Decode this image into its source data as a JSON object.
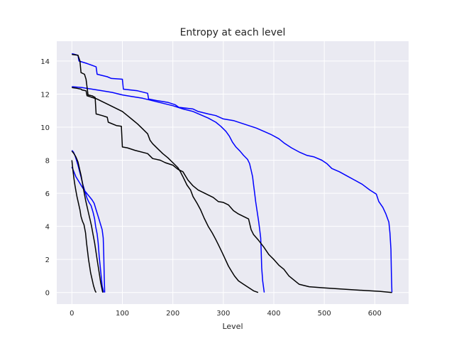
{
  "chart_data": {
    "type": "line",
    "title": "Entropy at each level",
    "xlabel": "Level",
    "ylabel": "",
    "xlim": [
      -30,
      667
    ],
    "ylim": [
      -0.7,
      15.2
    ],
    "xticks": [
      0,
      100,
      200,
      300,
      400,
      500,
      600
    ],
    "yticks": [
      0,
      2,
      4,
      6,
      8,
      10,
      12,
      14
    ],
    "grid": true,
    "style": {
      "background": "#eaeaf2",
      "grid_color": "#ffffff",
      "colors": {
        "blue": "#0000ff",
        "black": "#000000"
      }
    },
    "series": [
      {
        "color": "blue",
        "points": [
          [
            0,
            14.45
          ],
          [
            6,
            14.4
          ],
          [
            12,
            14.35
          ],
          [
            14,
            14.0
          ],
          [
            30,
            13.85
          ],
          [
            48,
            13.65
          ],
          [
            50,
            13.2
          ],
          [
            70,
            13.05
          ],
          [
            78,
            12.95
          ],
          [
            100,
            12.9
          ],
          [
            102,
            12.3
          ],
          [
            130,
            12.2
          ],
          [
            150,
            12.05
          ],
          [
            152,
            11.7
          ],
          [
            170,
            11.6
          ],
          [
            190,
            11.5
          ],
          [
            205,
            11.35
          ],
          [
            212,
            11.2
          ],
          [
            240,
            11.1
          ],
          [
            250,
            10.95
          ],
          [
            270,
            10.8
          ],
          [
            285,
            10.7
          ],
          [
            300,
            10.5
          ],
          [
            320,
            10.4
          ],
          [
            335,
            10.25
          ],
          [
            350,
            10.1
          ],
          [
            365,
            9.95
          ],
          [
            380,
            9.75
          ],
          [
            395,
            9.55
          ],
          [
            410,
            9.3
          ],
          [
            420,
            9.05
          ],
          [
            435,
            8.75
          ],
          [
            450,
            8.5
          ],
          [
            465,
            8.3
          ],
          [
            480,
            8.2
          ],
          [
            495,
            8.0
          ],
          [
            505,
            7.8
          ],
          [
            515,
            7.5
          ],
          [
            530,
            7.3
          ],
          [
            545,
            7.05
          ],
          [
            560,
            6.8
          ],
          [
            575,
            6.55
          ],
          [
            590,
            6.2
          ],
          [
            603,
            5.95
          ],
          [
            608,
            5.5
          ],
          [
            616,
            5.15
          ],
          [
            622,
            4.75
          ],
          [
            628,
            4.25
          ],
          [
            630,
            3.6
          ],
          [
            632,
            2.6
          ],
          [
            633,
            1.0
          ],
          [
            634,
            0.0
          ]
        ]
      },
      {
        "color": "blue",
        "points": [
          [
            0,
            12.45
          ],
          [
            20,
            12.4
          ],
          [
            40,
            12.3
          ],
          [
            60,
            12.2
          ],
          [
            80,
            12.1
          ],
          [
            100,
            11.95
          ],
          [
            120,
            11.85
          ],
          [
            140,
            11.75
          ],
          [
            160,
            11.6
          ],
          [
            180,
            11.45
          ],
          [
            200,
            11.3
          ],
          [
            220,
            11.1
          ],
          [
            240,
            10.95
          ],
          [
            255,
            10.75
          ],
          [
            270,
            10.55
          ],
          [
            285,
            10.3
          ],
          [
            295,
            10.05
          ],
          [
            305,
            9.75
          ],
          [
            312,
            9.45
          ],
          [
            318,
            9.1
          ],
          [
            325,
            8.8
          ],
          [
            333,
            8.55
          ],
          [
            340,
            8.3
          ],
          [
            348,
            8.05
          ],
          [
            352,
            7.8
          ],
          [
            355,
            7.4
          ],
          [
            358,
            7.0
          ],
          [
            360,
            6.5
          ],
          [
            362,
            6.0
          ],
          [
            364,
            5.5
          ],
          [
            367,
            4.9
          ],
          [
            370,
            4.3
          ],
          [
            372,
            3.8
          ],
          [
            374,
            3.3
          ],
          [
            375,
            2.5
          ],
          [
            376,
            1.5
          ],
          [
            378,
            0.7
          ],
          [
            381,
            0.0
          ]
        ]
      },
      {
        "color": "black",
        "points": [
          [
            0,
            12.4
          ],
          [
            10,
            12.35
          ],
          [
            18,
            12.3
          ],
          [
            20,
            12.25
          ],
          [
            28,
            12.2
          ],
          [
            30,
            11.9
          ],
          [
            40,
            11.8
          ],
          [
            50,
            11.7
          ],
          [
            60,
            11.55
          ],
          [
            70,
            11.4
          ],
          [
            80,
            11.25
          ],
          [
            90,
            11.1
          ],
          [
            100,
            10.95
          ],
          [
            110,
            10.7
          ],
          [
            120,
            10.45
          ],
          [
            130,
            10.2
          ],
          [
            140,
            9.9
          ],
          [
            150,
            9.6
          ],
          [
            155,
            9.2
          ],
          [
            160,
            9.0
          ],
          [
            170,
            8.7
          ],
          [
            180,
            8.4
          ],
          [
            190,
            8.15
          ],
          [
            200,
            7.85
          ],
          [
            210,
            7.55
          ],
          [
            215,
            7.3
          ],
          [
            220,
            7.0
          ],
          [
            228,
            6.5
          ],
          [
            235,
            6.2
          ],
          [
            240,
            5.8
          ],
          [
            248,
            5.4
          ],
          [
            255,
            5.0
          ],
          [
            262,
            4.5
          ],
          [
            270,
            4.0
          ],
          [
            278,
            3.6
          ],
          [
            285,
            3.2
          ],
          [
            290,
            2.9
          ],
          [
            298,
            2.4
          ],
          [
            304,
            2.0
          ],
          [
            310,
            1.6
          ],
          [
            316,
            1.3
          ],
          [
            322,
            1.0
          ],
          [
            330,
            0.7
          ],
          [
            340,
            0.5
          ],
          [
            350,
            0.3
          ],
          [
            360,
            0.1
          ],
          [
            369,
            0.0
          ]
        ]
      },
      {
        "color": "black",
        "points": [
          [
            0,
            14.4
          ],
          [
            12,
            14.35
          ],
          [
            16,
            14.0
          ],
          [
            18,
            13.3
          ],
          [
            25,
            13.2
          ],
          [
            28,
            12.9
          ],
          [
            32,
            11.95
          ],
          [
            40,
            11.9
          ],
          [
            46,
            11.8
          ],
          [
            48,
            10.8
          ],
          [
            60,
            10.7
          ],
          [
            70,
            10.6
          ],
          [
            72,
            10.3
          ],
          [
            88,
            10.1
          ],
          [
            98,
            10.05
          ],
          [
            100,
            8.8
          ],
          [
            110,
            8.75
          ],
          [
            125,
            8.6
          ],
          [
            150,
            8.4
          ],
          [
            160,
            8.1
          ],
          [
            175,
            8.0
          ],
          [
            185,
            7.85
          ],
          [
            200,
            7.7
          ],
          [
            210,
            7.45
          ],
          [
            220,
            7.3
          ],
          [
            230,
            6.8
          ],
          [
            240,
            6.45
          ],
          [
            250,
            6.2
          ],
          [
            260,
            6.05
          ],
          [
            270,
            5.9
          ],
          [
            280,
            5.75
          ],
          [
            290,
            5.5
          ],
          [
            300,
            5.45
          ],
          [
            310,
            5.3
          ],
          [
            320,
            4.95
          ],
          [
            330,
            4.75
          ],
          [
            340,
            4.6
          ],
          [
            350,
            4.45
          ],
          [
            355,
            3.8
          ],
          [
            360,
            3.5
          ],
          [
            370,
            3.15
          ],
          [
            380,
            2.75
          ],
          [
            390,
            2.3
          ],
          [
            400,
            2.0
          ],
          [
            410,
            1.65
          ],
          [
            420,
            1.4
          ],
          [
            430,
            1.0
          ],
          [
            440,
            0.75
          ],
          [
            450,
            0.5
          ],
          [
            470,
            0.35
          ],
          [
            500,
            0.28
          ],
          [
            540,
            0.2
          ],
          [
            580,
            0.12
          ],
          [
            610,
            0.07
          ],
          [
            634,
            0.0
          ]
        ]
      },
      {
        "color": "blue",
        "points": [
          [
            0,
            8.6
          ],
          [
            3,
            8.5
          ],
          [
            6,
            8.3
          ],
          [
            9,
            8.0
          ],
          [
            12,
            7.7
          ],
          [
            15,
            7.35
          ],
          [
            18,
            7.0
          ],
          [
            22,
            6.5
          ],
          [
            26,
            6.1
          ],
          [
            30,
            5.7
          ],
          [
            34,
            5.45
          ],
          [
            38,
            5.25
          ],
          [
            42,
            4.85
          ],
          [
            45,
            4.45
          ],
          [
            47,
            4.0
          ],
          [
            50,
            3.55
          ],
          [
            52,
            3.0
          ],
          [
            54,
            2.2
          ],
          [
            56,
            1.6
          ],
          [
            58,
            1.0
          ],
          [
            60,
            0.4
          ],
          [
            63,
            0.0
          ]
        ]
      },
      {
        "color": "blue",
        "points": [
          [
            0,
            7.6
          ],
          [
            4,
            7.3
          ],
          [
            8,
            7.0
          ],
          [
            12,
            6.8
          ],
          [
            16,
            6.6
          ],
          [
            20,
            6.4
          ],
          [
            24,
            6.2
          ],
          [
            28,
            6.05
          ],
          [
            32,
            5.9
          ],
          [
            36,
            5.75
          ],
          [
            40,
            5.6
          ],
          [
            44,
            5.4
          ],
          [
            48,
            5.0
          ],
          [
            52,
            4.6
          ],
          [
            56,
            4.2
          ],
          [
            60,
            3.8
          ],
          [
            62,
            3.3
          ],
          [
            63,
            2.4
          ],
          [
            64,
            1.0
          ],
          [
            65,
            0.0
          ]
        ]
      },
      {
        "color": "black",
        "points": [
          [
            0,
            8.55
          ],
          [
            4,
            8.4
          ],
          [
            8,
            8.2
          ],
          [
            12,
            7.9
          ],
          [
            15,
            7.5
          ],
          [
            18,
            7.1
          ],
          [
            21,
            6.6
          ],
          [
            24,
            6.1
          ],
          [
            27,
            5.6
          ],
          [
            30,
            5.2
          ],
          [
            33,
            4.8
          ],
          [
            36,
            4.4
          ],
          [
            39,
            4.0
          ],
          [
            42,
            3.5
          ],
          [
            45,
            3.0
          ],
          [
            48,
            2.4
          ],
          [
            51,
            1.8
          ],
          [
            54,
            1.2
          ],
          [
            57,
            0.6
          ],
          [
            61,
            0.0
          ]
        ]
      },
      {
        "color": "black",
        "points": [
          [
            0,
            8.0
          ],
          [
            2,
            7.4
          ],
          [
            4,
            6.9
          ],
          [
            6,
            6.5
          ],
          [
            8,
            6.15
          ],
          [
            10,
            5.8
          ],
          [
            13,
            5.4
          ],
          [
            16,
            5.0
          ],
          [
            18,
            4.6
          ],
          [
            21,
            4.3
          ],
          [
            24,
            4.1
          ],
          [
            27,
            3.6
          ],
          [
            29,
            3.0
          ],
          [
            31,
            2.5
          ],
          [
            33,
            2.0
          ],
          [
            35,
            1.6
          ],
          [
            37,
            1.2
          ],
          [
            40,
            0.8
          ],
          [
            43,
            0.4
          ],
          [
            46,
            0.1
          ],
          [
            48,
            0.0
          ]
        ]
      }
    ]
  }
}
